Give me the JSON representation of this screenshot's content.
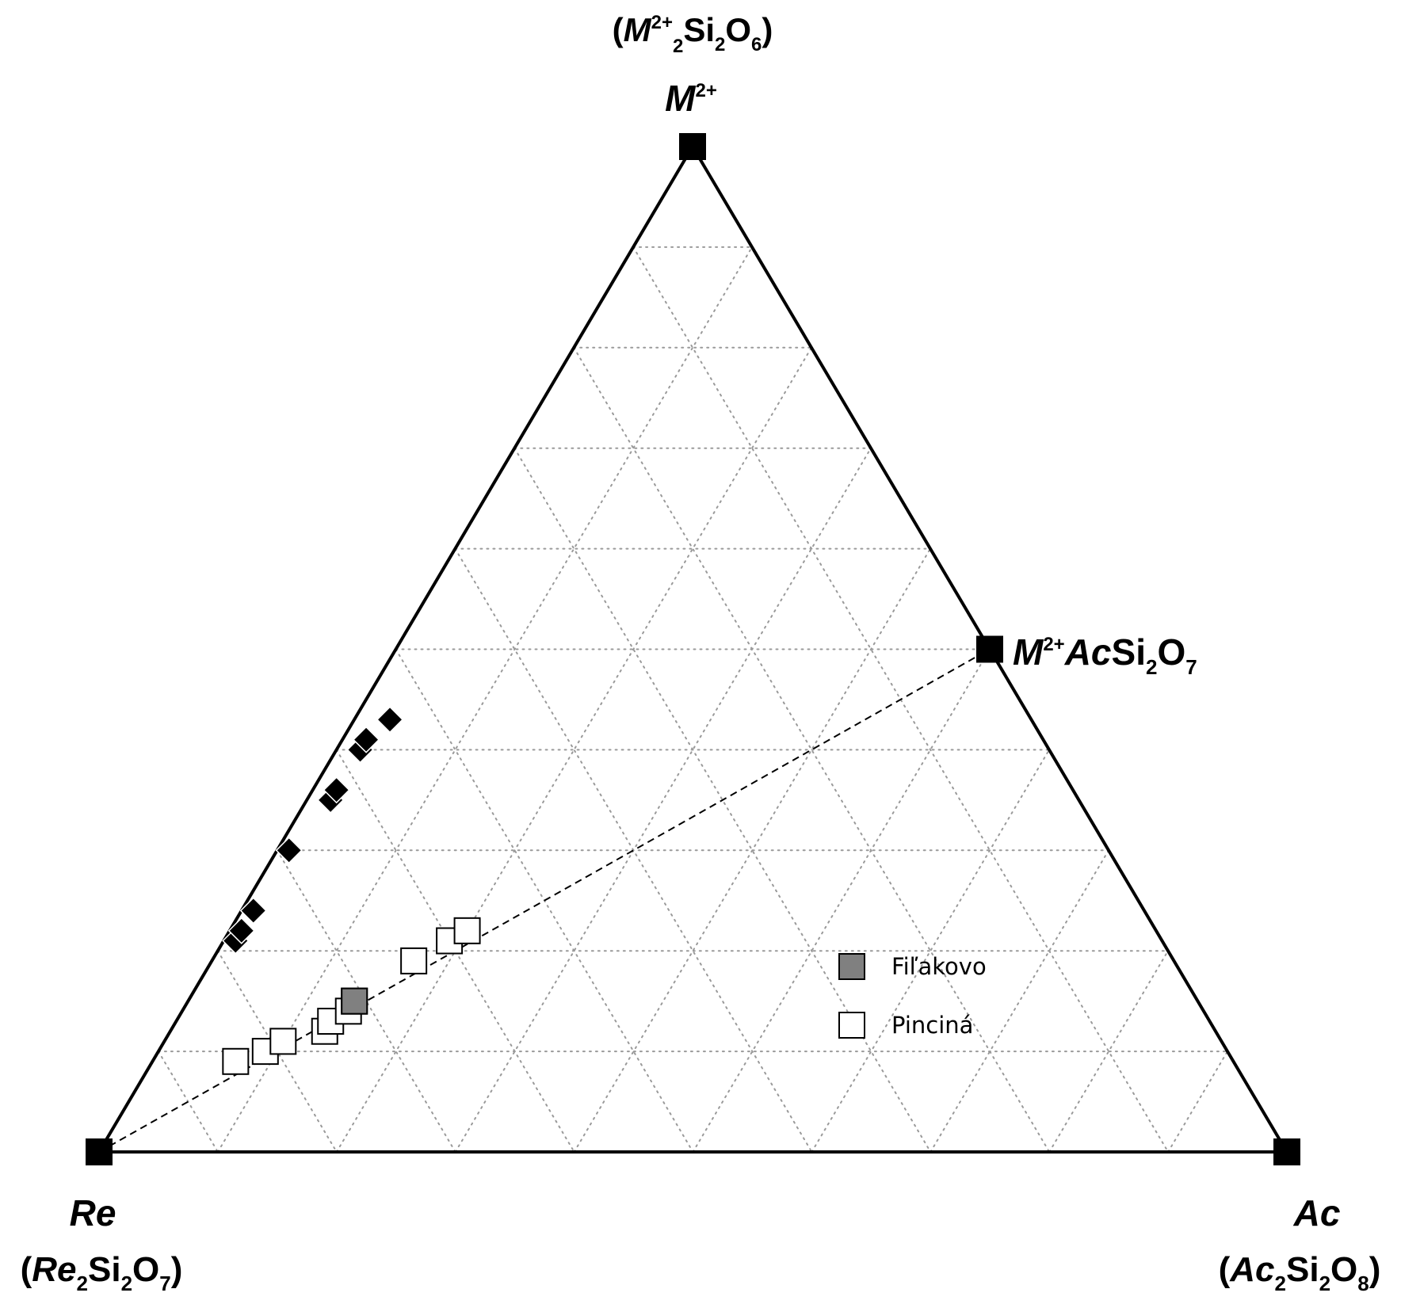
{
  "chart_data": {
    "type": "scatter",
    "subtype": "ternary",
    "title": "",
    "grid": true,
    "grid_step": 0.1,
    "legend_placement": "lower-right inside triangle",
    "colors": {
      "axis": "#000000",
      "grid": "#9a9a9a",
      "filakovo_fill": "#808080",
      "pincina_fill": "#ffffff",
      "diamond_fill": "#000000"
    },
    "vertices": {
      "top": {
        "label": "M2+",
        "formula": "(M2+2Si2O6)"
      },
      "left": {
        "label": "Re",
        "formula": "(Re2Si2O7)"
      },
      "right": {
        "label": "Ac",
        "formula": "(Ac2Si2O8)"
      }
    },
    "midpoint_label": "M2+AcSi2O7",
    "reference_line": {
      "from": "Re",
      "to": "M2+AcSi2O7",
      "style": "dashed"
    },
    "series": [
      {
        "name": "Fiľakovo",
        "marker": "square",
        "points": [
          {
            "M": 0.15,
            "Ac": 0.14
          }
        ]
      },
      {
        "name": "Pinciná",
        "marker": "square",
        "points": [
          {
            "M": 0.09,
            "Ac": 0.07
          },
          {
            "M": 0.1,
            "Ac": 0.09
          },
          {
            "M": 0.11,
            "Ac": 0.1
          },
          {
            "M": 0.12,
            "Ac": 0.13
          },
          {
            "M": 0.13,
            "Ac": 0.13
          },
          {
            "M": 0.14,
            "Ac": 0.14
          },
          {
            "M": 0.15,
            "Ac": 0.14
          },
          {
            "M": 0.19,
            "Ac": 0.17
          },
          {
            "M": 0.21,
            "Ac": 0.19
          },
          {
            "M": 0.22,
            "Ac": 0.2
          }
        ]
      },
      {
        "name": "",
        "marker": "diamond",
        "points": [
          {
            "M": 0.21,
            "Ac": 0.01
          },
          {
            "M": 0.22,
            "Ac": 0.01
          },
          {
            "M": 0.24,
            "Ac": 0.01
          },
          {
            "M": 0.3,
            "Ac": 0.01
          },
          {
            "M": 0.35,
            "Ac": 0.02
          },
          {
            "M": 0.36,
            "Ac": 0.02
          },
          {
            "M": 0.4,
            "Ac": 0.02
          },
          {
            "M": 0.41,
            "Ac": 0.02
          },
          {
            "M": 0.43,
            "Ac": 0.03
          }
        ]
      }
    ]
  }
}
